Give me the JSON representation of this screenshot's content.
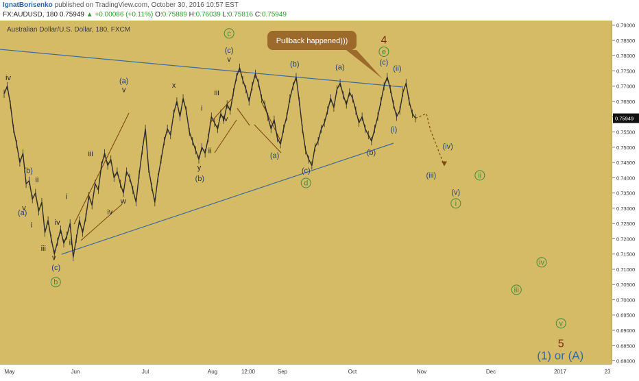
{
  "header": {
    "author": "IgnatBorisenko",
    "published": "published on TradingView.com, October 30, 2016 10:57 EST",
    "symbol": "FX:AUDUSD, 180",
    "last": "0.75949",
    "change": "+0.00086 (+0.11%)",
    "o_label": "O:",
    "o_value": "0.75889",
    "h_label": "H:",
    "h_value": "0.76039",
    "l_label": "L:",
    "l_value": "0.75816",
    "c_label": "C:",
    "c_value": "0.75949"
  },
  "chart_data": {
    "type": "line",
    "title": "Australian Dollar/U.S. Dollar, 180, FXCM",
    "y_ticks": [
      "0.79000",
      "0.78500",
      "0.78000",
      "0.77500",
      "0.77000",
      "0.76500",
      "0.76000",
      "0.75500",
      "0.75000",
      "0.74500",
      "0.74000",
      "0.73500",
      "0.73000",
      "0.72500",
      "0.72000",
      "0.71500",
      "0.71000",
      "0.70500",
      "0.70000",
      "0.69500",
      "0.69000",
      "0.68500",
      "0.68000"
    ],
    "ylim": [
      0.679,
      0.7915
    ],
    "x_ticks": [
      "May",
      "Jun",
      "Jul",
      "Aug",
      "12:00",
      "Sep",
      "Oct",
      "Nov",
      "Dec",
      "2017",
      "23"
    ],
    "last_price": "0.75949",
    "series": [
      {
        "values": [
          0.7675,
          0.77,
          0.764,
          0.756,
          0.751,
          0.745,
          0.748,
          0.738,
          0.739,
          0.733,
          0.735,
          0.729,
          0.732,
          0.722,
          0.726,
          0.72,
          0.715,
          0.719,
          0.723,
          0.7185,
          0.721,
          0.725,
          0.714,
          0.72,
          0.726,
          0.722,
          0.727,
          0.734,
          0.731,
          0.738,
          0.736,
          0.744,
          0.748,
          0.744,
          0.746,
          0.74,
          0.742,
          0.738,
          0.735,
          0.742,
          0.74,
          0.736,
          0.732,
          0.741,
          0.749,
          0.756,
          0.743,
          0.737,
          0.732,
          0.74,
          0.746,
          0.752,
          0.756,
          0.754,
          0.761,
          0.765,
          0.76,
          0.766,
          0.762,
          0.755,
          0.752,
          0.749,
          0.746,
          0.75,
          0.748,
          0.753,
          0.76,
          0.758,
          0.756,
          0.761,
          0.759,
          0.764,
          0.762,
          0.768,
          0.773,
          0.776,
          0.772,
          0.769,
          0.765,
          0.77,
          0.774,
          0.771,
          0.766,
          0.764,
          0.76,
          0.756,
          0.759,
          0.753,
          0.751,
          0.756,
          0.76,
          0.766,
          0.77,
          0.773,
          0.765,
          0.756,
          0.749,
          0.746,
          0.744,
          0.75,
          0.752,
          0.756,
          0.758,
          0.762,
          0.766,
          0.763,
          0.769,
          0.771,
          0.767,
          0.764,
          0.768,
          0.766,
          0.762,
          0.758,
          0.76,
          0.756,
          0.754,
          0.752,
          0.756,
          0.76,
          0.765,
          0.77,
          0.773,
          0.769,
          0.764,
          0.76,
          0.762,
          0.768,
          0.771,
          0.765,
          0.761,
          0.7595
        ]
      }
    ],
    "projection": [
      0.7595,
      0.761,
      0.7555,
      0.744
    ],
    "annotations": [
      {
        "text": "iv",
        "x": 0.0,
        "y": 0.772,
        "color": "#222222"
      },
      {
        "text": "(b)",
        "x": 0.0344,
        "y": 0.7415,
        "color": "#1f3f73"
      },
      {
        "text": "ii",
        "x": 0.0494,
        "y": 0.7385,
        "color": "#222222"
      },
      {
        "text": "v",
        "x": 0.0271,
        "y": 0.7293,
        "color": "#222222"
      },
      {
        "text": "(a)",
        "x": 0.0244,
        "y": 0.7277,
        "color": "#1f3f73"
      },
      {
        "text": "i",
        "x": 0.0402,
        "y": 0.7237,
        "color": "#222222"
      },
      {
        "text": "iii",
        "x": 0.0603,
        "y": 0.716,
        "color": "#222222"
      },
      {
        "text": "iv",
        "x": 0.0843,
        "y": 0.7246,
        "color": "#222222"
      },
      {
        "text": "ii",
        "x": 0.1072,
        "y": 0.718,
        "color": "#222222"
      },
      {
        "text": "i",
        "x": 0.1003,
        "y": 0.733,
        "color": "#222222"
      },
      {
        "text": "v",
        "x": 0.0785,
        "y": 0.713,
        "color": "#222222"
      },
      {
        "text": "(c)",
        "x": 0.082,
        "y": 0.7098,
        "color": "#1f3f73"
      },
      {
        "text": "b",
        "x": 0.0815,
        "y": 0.705,
        "color": "#3f8a3f",
        "circle": true
      },
      {
        "text": "iii",
        "x": 0.1414,
        "y": 0.747,
        "color": "#222222"
      },
      {
        "text": "(a)",
        "x": 0.1985,
        "y": 0.771,
        "color": "#1f3f73"
      },
      {
        "text": "v",
        "x": 0.1985,
        "y": 0.768,
        "color": "#222222"
      },
      {
        "text": "iv",
        "x": 0.1745,
        "y": 0.728,
        "color": "#222222"
      },
      {
        "text": "w",
        "x": 0.1974,
        "y": 0.7315,
        "color": "#222222"
      },
      {
        "text": "x",
        "x": 0.2842,
        "y": 0.7695,
        "color": "#222222"
      },
      {
        "text": "i",
        "x": 0.3322,
        "y": 0.762,
        "color": "#222222"
      },
      {
        "text": "iii",
        "x": 0.3579,
        "y": 0.767,
        "color": "#222222"
      },
      {
        "text": "iv",
        "x": 0.3722,
        "y": 0.7585,
        "color": "#222222"
      },
      {
        "text": "ii",
        "x": 0.3459,
        "y": 0.748,
        "color": "#222222"
      },
      {
        "text": "y",
        "x": 0.3276,
        "y": 0.7425,
        "color": "#222222"
      },
      {
        "text": "(b)",
        "x": 0.3287,
        "y": 0.739,
        "color": "#1f3f73"
      },
      {
        "text": "c",
        "x": 0.379,
        "y": 0.7865,
        "color": "#3f8a3f",
        "circle": true
      },
      {
        "text": "(c)",
        "x": 0.379,
        "y": 0.781,
        "color": "#1f3f73"
      },
      {
        "text": "v",
        "x": 0.379,
        "y": 0.778,
        "color": "#222222"
      },
      {
        "text": "(b)",
        "x": 0.4915,
        "y": 0.7765,
        "color": "#1f3f73"
      },
      {
        "text": "(a)",
        "x": 0.4572,
        "y": 0.7465,
        "color": "#1f3f73"
      },
      {
        "text": "(c)",
        "x": 0.5109,
        "y": 0.7415,
        "color": "#1f3f73"
      },
      {
        "text": "d",
        "x": 0.5109,
        "y": 0.7375,
        "color": "#3f8a3f",
        "circle": true
      },
      {
        "text": "(a)",
        "x": 0.5692,
        "y": 0.7755,
        "color": "#1f3f73"
      },
      {
        "text": "(b)",
        "x": 0.6229,
        "y": 0.7475,
        "color": "#1f3f73"
      },
      {
        "text": "4",
        "x": 0.6446,
        "y": 0.784,
        "color": "#7a2a10"
      },
      {
        "text": "e",
        "x": 0.6446,
        "y": 0.7805,
        "color": "#3f8a3f",
        "circle": true
      },
      {
        "text": "(c)",
        "x": 0.6446,
        "y": 0.777,
        "color": "#1f3f73"
      },
      {
        "text": "(ii)",
        "x": 0.6675,
        "y": 0.775,
        "color": "#1f3f73"
      },
      {
        "text": "(i)",
        "x": 0.6617,
        "y": 0.755,
        "color": "#1f3f73"
      },
      {
        "text": "(iii)",
        "x": 0.7257,
        "y": 0.74,
        "color": "#1f3f73"
      },
      {
        "text": "(iv)",
        "x": 0.7543,
        "y": 0.7495,
        "color": "#1f3f73"
      },
      {
        "text": "ii",
        "x": 0.8092,
        "y": 0.74,
        "color": "#3f8a3f",
        "circle": true
      },
      {
        "text": "(v)",
        "x": 0.768,
        "y": 0.7345,
        "color": "#1f3f73"
      },
      {
        "text": "i",
        "x": 0.768,
        "y": 0.7308,
        "color": "#3f8a3f",
        "circle": true
      },
      {
        "text": "iv",
        "x": 0.9153,
        "y": 0.7115,
        "color": "#3f8a3f",
        "circle": true
      },
      {
        "text": "iii",
        "x": 0.8721,
        "y": 0.7025,
        "color": "#3f8a3f",
        "circle": true
      },
      {
        "text": "v",
        "x": 0.9485,
        "y": 0.6915,
        "color": "#3f8a3f",
        "circle": true
      },
      {
        "text": "5",
        "x": 0.9485,
        "y": 0.6845,
        "color": "#7a2a10"
      },
      {
        "text": "(1) or (A)",
        "x": 0.9474,
        "y": 0.6805,
        "color": "#2d6aa8",
        "big": true
      }
    ],
    "callout": "Pullback happened)))"
  }
}
